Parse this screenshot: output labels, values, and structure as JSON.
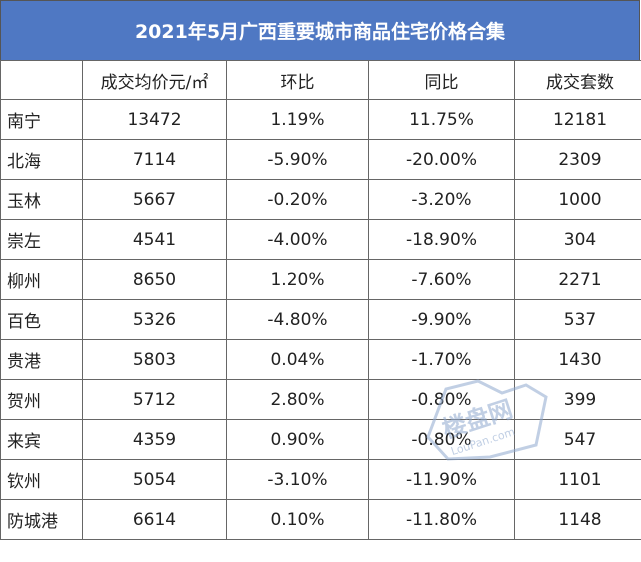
{
  "title": "2021年5月广西重要城市商品住宅价格合集",
  "columns": [
    "",
    "成交均价元/㎡",
    "环比",
    "同比",
    "成交套数"
  ],
  "rows": [
    [
      "南宁",
      "13472",
      "1.19%",
      "11.75%",
      "12181"
    ],
    [
      "北海",
      "7114",
      "-5.90%",
      "-20.00%",
      "2309"
    ],
    [
      "玉林",
      "5667",
      "-0.20%",
      "-3.20%",
      "1000"
    ],
    [
      "崇左",
      "4541",
      "-4.00%",
      "-18.90%",
      "304"
    ],
    [
      "柳州",
      "8650",
      "1.20%",
      "-7.60%",
      "2271"
    ],
    [
      "百色",
      "5326",
      "-4.80%",
      "-9.90%",
      "537"
    ],
    [
      "贵港",
      "5803",
      "0.04%",
      "-1.70%",
      "1430"
    ],
    [
      "贺州",
      "5712",
      "2.80%",
      "-0.80%",
      "399"
    ],
    [
      "来宾",
      "4359",
      "0.90%",
      "-0.80%",
      "547"
    ],
    [
      "钦州",
      "5054",
      "-3.10%",
      "-11.90%",
      "1101"
    ],
    [
      "防城港",
      "6614",
      "0.10%",
      "-11.80%",
      "1148"
    ]
  ],
  "watermark": {
    "brand": "楼盘网",
    "sub": "LouPan.com"
  },
  "colors": {
    "header_bg": "#4f78c3",
    "watermark": "#8fa9cf"
  }
}
